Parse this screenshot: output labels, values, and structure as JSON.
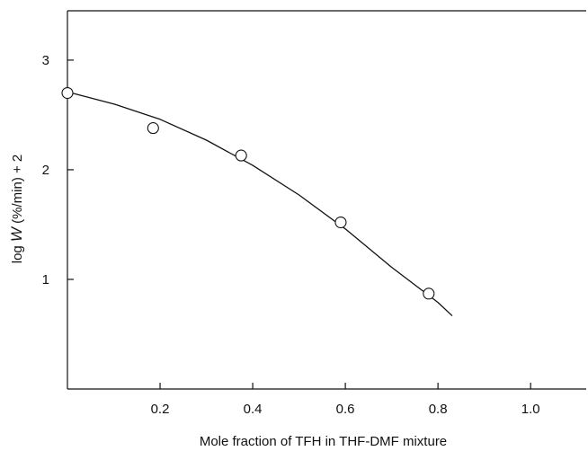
{
  "chart_data": {
    "type": "scatter",
    "title": "",
    "xlabel": "Mole fraction of TFH in THF-DMF mixture",
    "ylabel": {
      "prefix": "log ",
      "var": "W",
      "suffix": " (%/min) + 2"
    },
    "xlim": [
      0,
      1.12
    ],
    "ylim": [
      0,
      3.45
    ],
    "xticks": [
      0.2,
      0.4,
      0.6,
      0.8,
      1.0
    ],
    "xtick_labels": [
      "0.2",
      "0.4",
      "0.6",
      "0.8",
      "1.0"
    ],
    "yticks": [
      1,
      2,
      3
    ],
    "ytick_labels": [
      "1",
      "2",
      "3"
    ],
    "series": [
      {
        "points": [
          {
            "x": 0.0,
            "y": 2.7
          },
          {
            "x": 0.185,
            "y": 2.38
          },
          {
            "x": 0.375,
            "y": 2.13
          },
          {
            "x": 0.59,
            "y": 1.52
          },
          {
            "x": 0.78,
            "y": 0.87
          }
        ]
      }
    ],
    "fit_curve": {
      "x": [
        0.0,
        0.1,
        0.2,
        0.3,
        0.4,
        0.5,
        0.6,
        0.7,
        0.8,
        0.83
      ],
      "y": [
        2.71,
        2.6,
        2.46,
        2.27,
        2.04,
        1.77,
        1.46,
        1.11,
        0.79,
        0.67
      ]
    },
    "grid": false,
    "legend": "none"
  }
}
